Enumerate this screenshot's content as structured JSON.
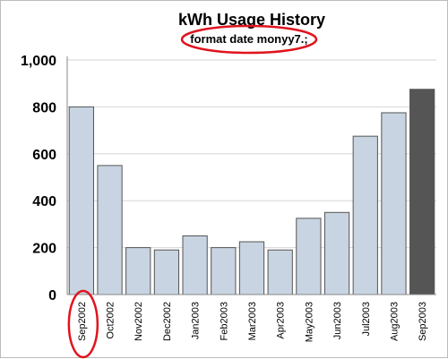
{
  "chart_data": {
    "type": "bar",
    "title": "kWh Usage History",
    "subtitle": "format date monyy7.;",
    "categories": [
      "Sep2002",
      "Oct2002",
      "Nov2002",
      "Dec2002",
      "Jan2003",
      "Feb2003",
      "Mar2003",
      "Apr2003",
      "May2003",
      "Jun2003",
      "Jul2003",
      "Aug2003",
      "Sep2003"
    ],
    "values": [
      800,
      550,
      200,
      190,
      250,
      200,
      225,
      190,
      325,
      350,
      675,
      775,
      875
    ],
    "highlight_index": 12,
    "ylim": [
      0,
      1000
    ],
    "yticks": [
      0,
      200,
      400,
      600,
      800,
      1000
    ],
    "ytick_labels": [
      "0",
      "200",
      "400",
      "600",
      "800",
      "1,000"
    ],
    "xlabel": "",
    "ylabel": "",
    "grid": true,
    "legend": "none",
    "colors": {
      "bar_fill": "#c8d4e2",
      "bar_highlight": "#555555",
      "bar_stroke": "#555555",
      "grid": "#d6d6d6",
      "annotation": "#e0141e"
    },
    "annotations": [
      {
        "shape": "ellipse",
        "target": "subtitle"
      },
      {
        "shape": "ellipse",
        "target": "first-x-tick"
      }
    ]
  }
}
